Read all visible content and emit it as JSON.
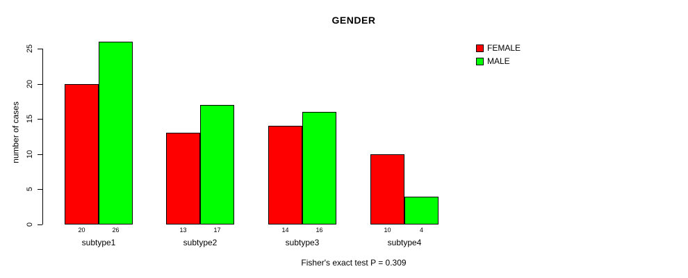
{
  "title": "GENDER",
  "footer": "Fisher's exact test P = 0.309",
  "y_axis": {
    "label": "number of cases"
  },
  "colors": {
    "female": "#FF0000",
    "male": "#00FF00",
    "axis": "#000000",
    "background": "#FFFFFF"
  },
  "chart_data": {
    "type": "bar",
    "title": "GENDER",
    "xlabel": "",
    "ylabel": "number of cases",
    "categories": [
      "subtype1",
      "subtype2",
      "subtype3",
      "subtype4"
    ],
    "series": [
      {
        "name": "FEMALE",
        "color": "#FF0000",
        "values": [
          20,
          13,
          14,
          10
        ]
      },
      {
        "name": "MALE",
        "color": "#00FF00",
        "values": [
          26,
          17,
          16,
          4
        ]
      }
    ],
    "yticks": [
      0,
      5,
      10,
      15,
      20,
      25
    ],
    "ylim": [
      0,
      25
    ],
    "grid": false,
    "legend_position": "top-right-outside",
    "bar_value_labels": true,
    "annotation": "Fisher's exact test P = 0.309"
  }
}
